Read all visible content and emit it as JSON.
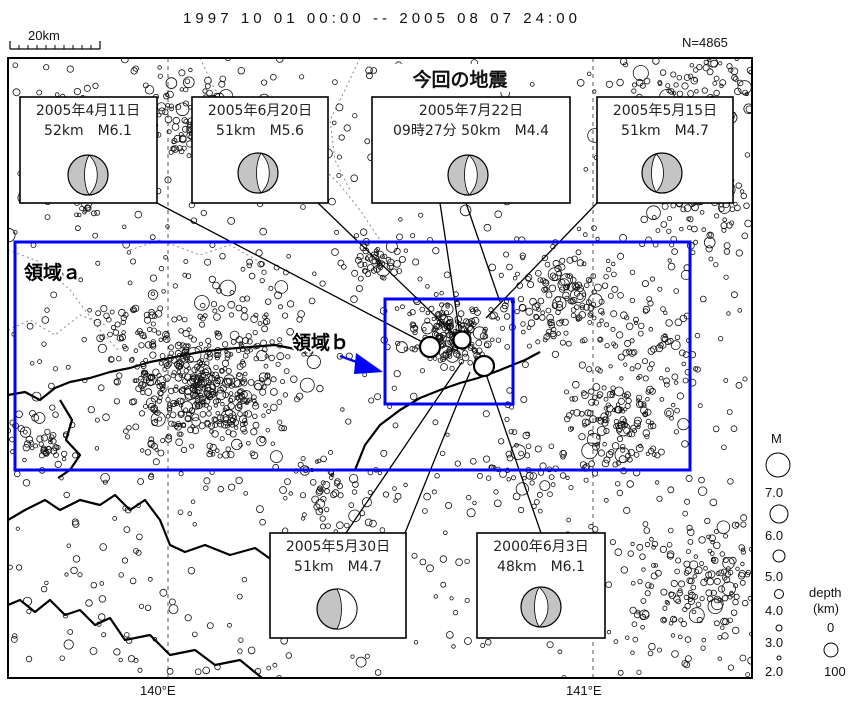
{
  "title": "1997 10 01 00:00 -- 2005 08 07 24:00",
  "scale_label": "20km",
  "count_label": "N=4865",
  "axis": {
    "lon_labels": [
      "140°E",
      "141°E"
    ]
  },
  "regions": {
    "a_label": "領域ａ",
    "b_label": "領域ｂ"
  },
  "current_quake_label": "今回の地震",
  "focal_boxes": [
    {
      "date": "2005年4月11日",
      "info": "52km　M6.1"
    },
    {
      "date": "2005年6月20日",
      "info": "51km　M5.6"
    },
    {
      "date": "2005年7月22日",
      "info": "09時27分 50km　M4.4"
    },
    {
      "date": "2005年5月15日",
      "info": "51km　M4.7"
    },
    {
      "date": "2005年5月30日",
      "info": "51km　M4.7"
    },
    {
      "date": "2000年6月3日",
      "info": "48km　M6.1"
    }
  ],
  "legend": {
    "magnitude_title": "M",
    "magnitude_labels": [
      "7.0",
      "6.0",
      "5.0",
      "4.0",
      "3.0",
      "2.0"
    ],
    "depth_title": "depth",
    "depth_unit": "(km)",
    "depth_labels": [
      "0",
      "100"
    ]
  },
  "colors": {
    "region_outline": "#0000ff",
    "arrow": "#0000ff",
    "mechanism_fill": "#c4c4c4"
  },
  "icons": {
    "focal_mechanism": "focal-mechanism-icon",
    "arrow": "arrow-icon"
  }
}
